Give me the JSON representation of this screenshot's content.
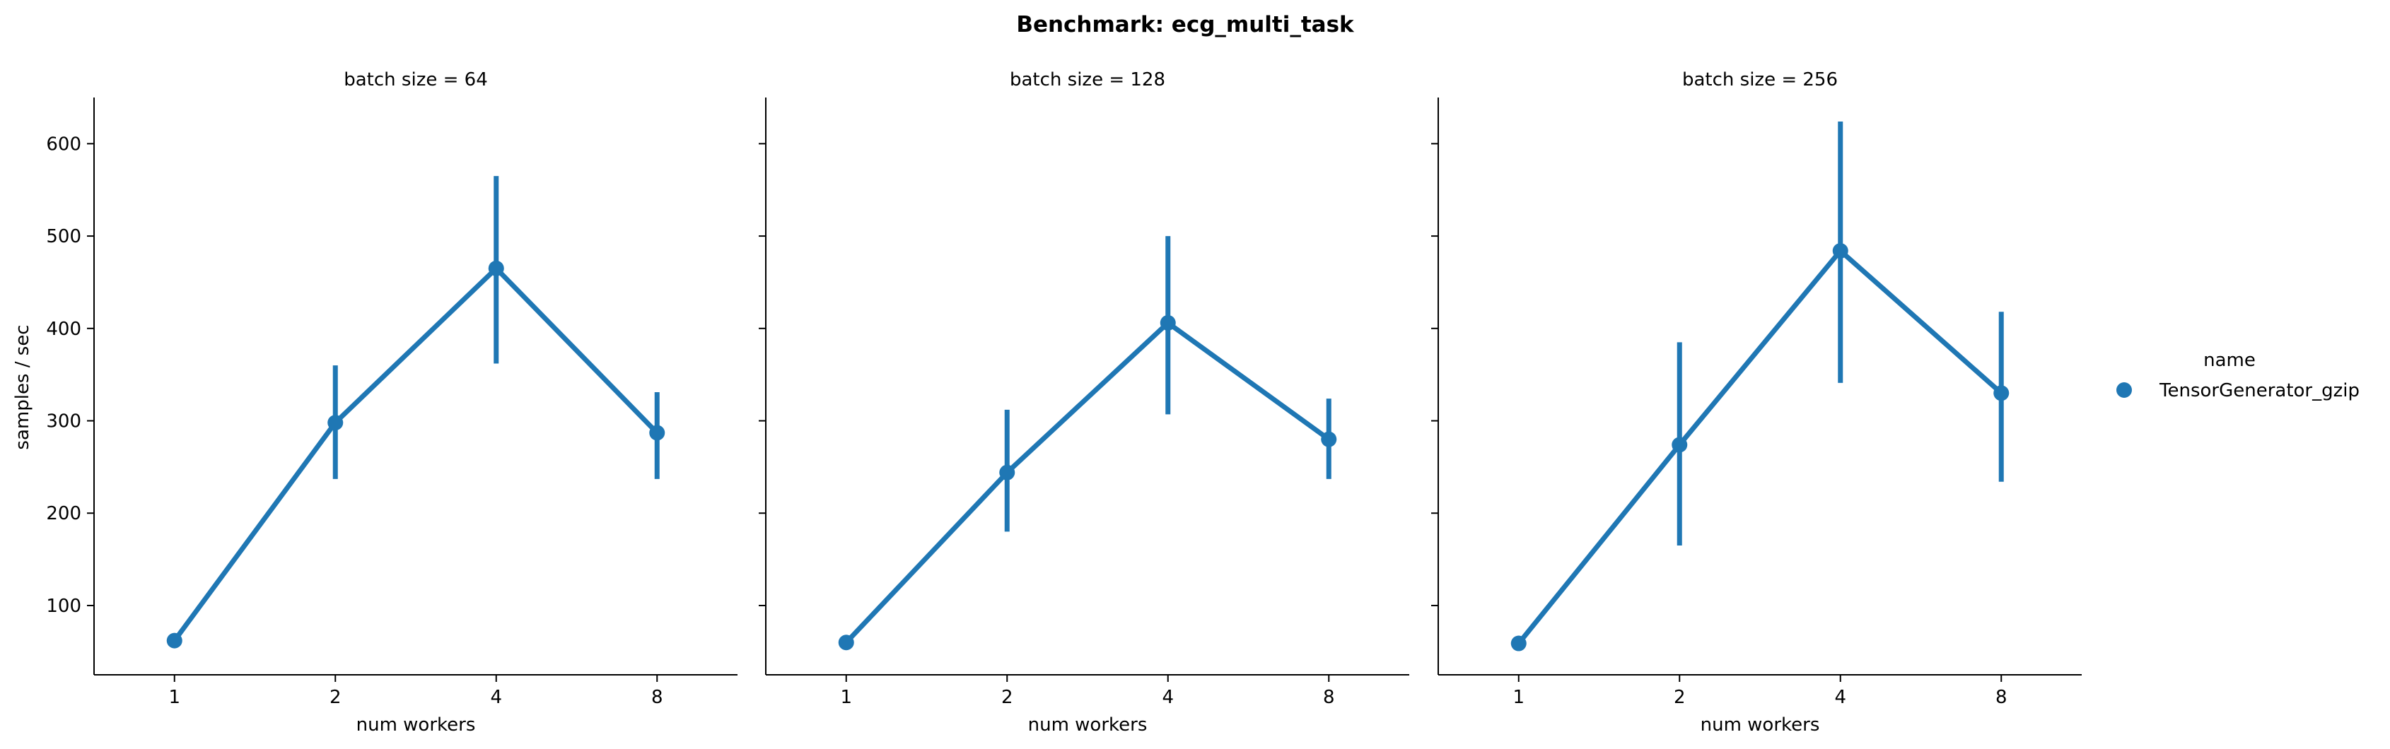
{
  "chart_data": {
    "type": "line",
    "title": "Benchmark: ecg_multi_task",
    "ylabel": "samples / sec",
    "xlabel": "num workers",
    "categories": [
      "1",
      "2",
      "4",
      "8"
    ],
    "yticks": [
      "100",
      "200",
      "300",
      "400",
      "500",
      "600"
    ],
    "ylim": [
      25,
      650
    ],
    "grid": false,
    "legend": {
      "title": "name",
      "placement": "right",
      "entries": [
        "TensorGenerator_gzip"
      ]
    },
    "series_color": "#1f77b4",
    "panels": [
      {
        "title": "batch size = 64",
        "series": [
          {
            "values": [
              62,
              298,
              465,
              287
            ],
            "err_low": [
              62,
              237,
              362,
              237
            ],
            "err_high": [
              62,
              360,
              565,
              331
            ]
          }
        ]
      },
      {
        "title": "batch size = 128",
        "series": [
          {
            "values": [
              60,
              244,
              406,
              280
            ],
            "err_low": [
              60,
              180,
              307,
              237
            ],
            "err_high": [
              60,
              312,
              500,
              324
            ]
          }
        ]
      },
      {
        "title": "batch size = 256",
        "series": [
          {
            "values": [
              59,
              274,
              484,
              330
            ],
            "err_low": [
              59,
              165,
              341,
              234
            ],
            "err_high": [
              59,
              385,
              624,
              418
            ]
          }
        ]
      }
    ]
  }
}
